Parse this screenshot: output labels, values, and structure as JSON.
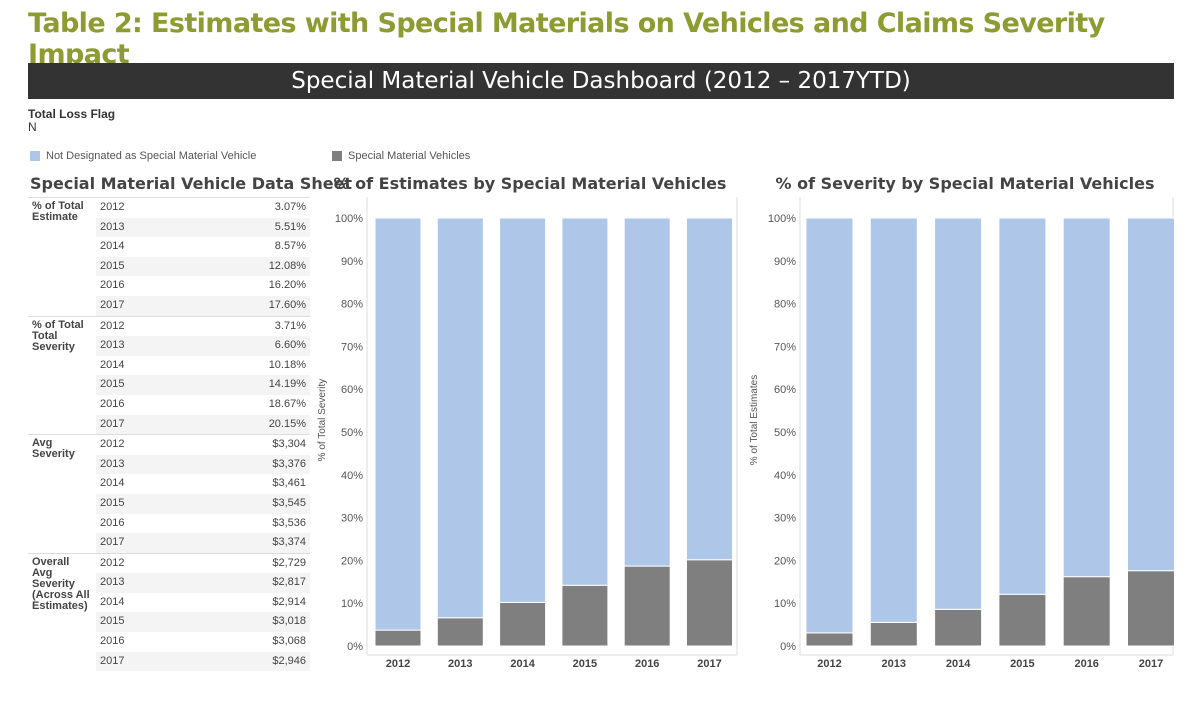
{
  "title": "Table 2: Estimates with Special Materials on Vehicles and Claims Severity Impact",
  "banner": "Special Material Vehicle Dashboard (2012 – 2017YTD)",
  "filter": {
    "label": "Total Loss Flag",
    "value": "N"
  },
  "legend": [
    {
      "label": "Not Designated as Special Material Vehicle",
      "color": "#aec7e8"
    },
    {
      "label": "Special Material Vehicles",
      "color": "#7f7f7f"
    }
  ],
  "sheet": {
    "title": "Special Material Vehicle Data Sheet",
    "groups": [
      {
        "label": "% of Total Estimate",
        "rows": [
          [
            "2012",
            "3.07%"
          ],
          [
            "2013",
            "5.51%"
          ],
          [
            "2014",
            "8.57%"
          ],
          [
            "2015",
            "12.08%"
          ],
          [
            "2016",
            "16.20%"
          ],
          [
            "2017",
            "17.60%"
          ]
        ]
      },
      {
        "label": "% of Total Total Severity",
        "rows": [
          [
            "2012",
            "3.71%"
          ],
          [
            "2013",
            "6.60%"
          ],
          [
            "2014",
            "10.18%"
          ],
          [
            "2015",
            "14.19%"
          ],
          [
            "2016",
            "18.67%"
          ],
          [
            "2017",
            "20.15%"
          ]
        ]
      },
      {
        "label": "Avg Severity",
        "rows": [
          [
            "2012",
            "$3,304"
          ],
          [
            "2013",
            "$3,376"
          ],
          [
            "2014",
            "$3,461"
          ],
          [
            "2015",
            "$3,545"
          ],
          [
            "2016",
            "$3,536"
          ],
          [
            "2017",
            "$3,374"
          ]
        ]
      },
      {
        "label": "Overall Avg Severity (Across All Estimates)",
        "rows": [
          [
            "2012",
            "$2,729"
          ],
          [
            "2013",
            "$2,817"
          ],
          [
            "2014",
            "$2,914"
          ],
          [
            "2015",
            "$3,018"
          ],
          [
            "2016",
            "$3,068"
          ],
          [
            "2017",
            "$2,946"
          ]
        ]
      }
    ]
  },
  "chart_data": [
    {
      "type": "bar",
      "stacked": true,
      "title": "% of Estimates by Special Material Vehicles",
      "ylabel": "% of Total Severity",
      "xlabel": "",
      "categories": [
        "2012",
        "2013",
        "2014",
        "2015",
        "2016",
        "2017"
      ],
      "ylim": [
        0,
        100
      ],
      "yticks": [
        "0%",
        "10%",
        "20%",
        "30%",
        "40%",
        "50%",
        "60%",
        "70%",
        "80%",
        "90%",
        "100%"
      ],
      "series": [
        {
          "name": "Special Material Vehicles",
          "values": [
            3.71,
            6.6,
            10.18,
            14.19,
            18.67,
            20.15
          ],
          "color": "#7f7f7f"
        },
        {
          "name": "Not Designated as Special Material Vehicle",
          "values": [
            96.29,
            93.4,
            89.82,
            85.81,
            81.33,
            79.85
          ],
          "color": "#aec7e8"
        }
      ]
    },
    {
      "type": "bar",
      "stacked": true,
      "title": "% of Severity by Special Material Vehicles",
      "ylabel": "% of Total Estimates",
      "xlabel": "",
      "categories": [
        "2012",
        "2013",
        "2014",
        "2015",
        "2016",
        "2017"
      ],
      "ylim": [
        0,
        100
      ],
      "yticks": [
        "0%",
        "10%",
        "20%",
        "30%",
        "40%",
        "50%",
        "60%",
        "70%",
        "80%",
        "90%",
        "100%"
      ],
      "series": [
        {
          "name": "Special Material Vehicles",
          "values": [
            3.07,
            5.51,
            8.57,
            12.08,
            16.2,
            17.6
          ],
          "color": "#7f7f7f"
        },
        {
          "name": "Not Designated as Special Material Vehicle",
          "values": [
            96.93,
            94.49,
            91.43,
            87.92,
            83.8,
            82.4
          ],
          "color": "#aec7e8"
        }
      ]
    }
  ]
}
